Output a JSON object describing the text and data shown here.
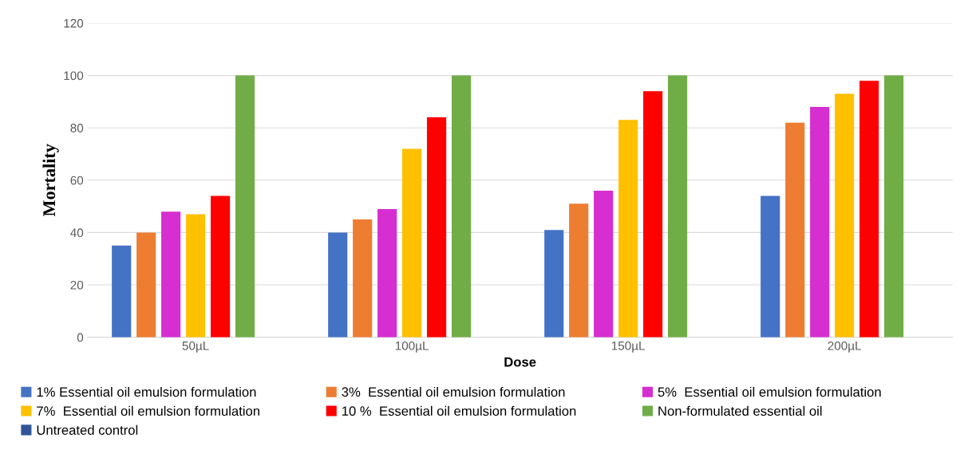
{
  "chart_data": {
    "type": "bar",
    "xlabel": "Dose",
    "ylabel": "Mortality",
    "categories": [
      "50µL",
      "100µL",
      "150µL",
      "200µL"
    ],
    "series": [
      {
        "name": "1% Essential oil emulsion formulation",
        "color": "#4472c4",
        "values": [
          35,
          40,
          41,
          54
        ]
      },
      {
        "name": "3%  Essential oil emulsion formulation",
        "color": "#ed7d31",
        "values": [
          40,
          45,
          51,
          82
        ]
      },
      {
        "name": "5%  Essential oil emulsion formulation",
        "color": "#d62ed0",
        "values": [
          48,
          49,
          56,
          88
        ]
      },
      {
        "name": "7%  Essential oil emulsion formulation",
        "color": "#ffc000",
        "values": [
          47,
          72,
          83,
          93
        ]
      },
      {
        "name": "10 %  Essential oil emulsion formulation",
        "color": "#ff0000",
        "values": [
          54,
          84,
          94,
          98
        ]
      },
      {
        "name": "Non-formulated essential oil",
        "color": "#70ad47",
        "values": [
          100,
          100,
          100,
          100
        ]
      },
      {
        "name": "Untreated control",
        "color": "#2f5597",
        "values": [
          0,
          0,
          0,
          0
        ]
      }
    ],
    "ylim": [
      0,
      120
    ],
    "yticks": [
      0,
      20,
      40,
      60,
      80,
      100,
      120
    ],
    "grid": "y",
    "legend": "bottom"
  }
}
